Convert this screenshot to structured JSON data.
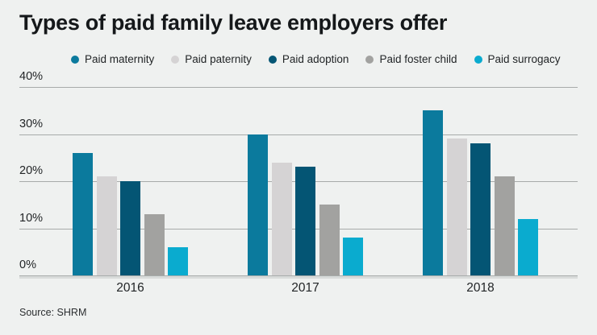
{
  "title": "Types of paid family leave employers offer",
  "source": "Source: SHRM",
  "colors": {
    "background": "#eff1f0",
    "title": "#15181a",
    "text": "#222527",
    "gridline": "#a7abaa",
    "axis_band": "#d9dcdb"
  },
  "chart_data": {
    "type": "bar",
    "title": "Types of paid family leave employers offer",
    "categories": [
      "2016",
      "2017",
      "2018"
    ],
    "series": [
      {
        "name": "Paid maternity",
        "color": "#0b7a9d",
        "values": [
          26,
          30,
          35
        ]
      },
      {
        "name": "Paid paternity",
        "color": "#d5d3d4",
        "values": [
          21,
          24,
          29
        ]
      },
      {
        "name": "Paid adoption",
        "color": "#045574",
        "values": [
          20,
          23,
          28
        ]
      },
      {
        "name": "Paid foster child",
        "color": "#a2a2a0",
        "values": [
          13,
          15,
          21
        ]
      },
      {
        "name": "Paid surrogacy",
        "color": "#0aabcf",
        "values": [
          6,
          8,
          12
        ]
      }
    ],
    "xlabel": "",
    "ylabel": "",
    "ylim": [
      0,
      40
    ],
    "yticks": [
      "0%",
      "10%",
      "20%",
      "30%",
      "40%"
    ],
    "grid": true,
    "legend_position": "top"
  }
}
